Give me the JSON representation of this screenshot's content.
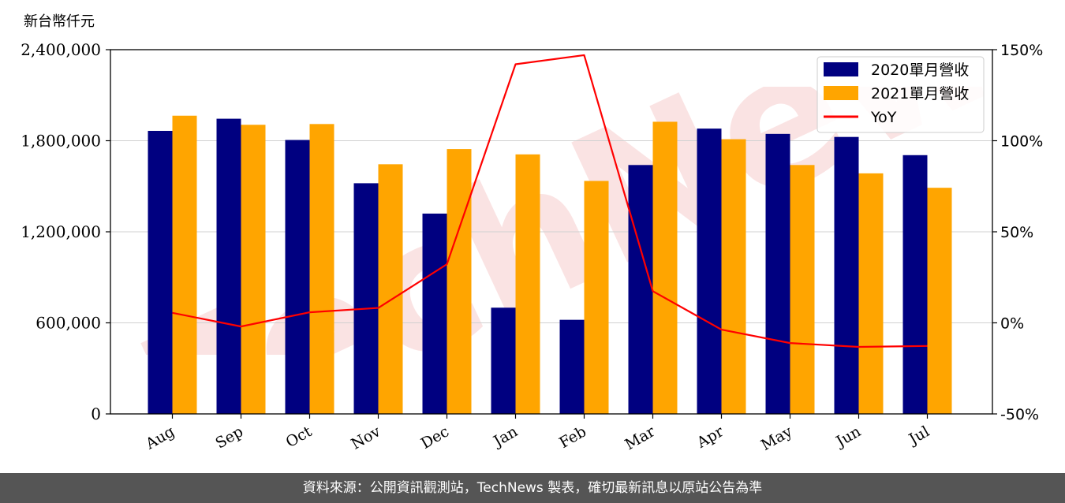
{
  "chart_data": {
    "type": "bar+line",
    "unit_label": "新台幣仟元",
    "categories": [
      "Aug",
      "Sep",
      "Oct",
      "Nov",
      "Dec",
      "Jan",
      "Feb",
      "Mar",
      "Apr",
      "May",
      "Jun",
      "Jul"
    ],
    "series": [
      {
        "name": "2020單月營收",
        "type": "bar",
        "axis": "left",
        "color": "#000080",
        "values": [
          1865000,
          1945000,
          1805000,
          1520000,
          1320000,
          700000,
          620000,
          1640000,
          1880000,
          1845000,
          1825000,
          1705000
        ]
      },
      {
        "name": "2021單月營收",
        "type": "bar",
        "axis": "left",
        "color": "#FFA500",
        "values": [
          1965000,
          1905000,
          1910000,
          1645000,
          1745000,
          1710000,
          1535000,
          1925000,
          1810000,
          1640000,
          1585000,
          1490000
        ]
      },
      {
        "name": "YoY",
        "type": "line",
        "axis": "right",
        "color": "#FF0000",
        "values": [
          5.5,
          -2,
          5.8,
          8.2,
          32.2,
          142,
          147,
          17.4,
          -3.7,
          -11.1,
          -13.2,
          -12.7
        ]
      }
    ],
    "left_axis": {
      "ylim": [
        0,
        2400000
      ],
      "ticks": [
        "0",
        "600,000",
        "1,200,000",
        "1,800,000",
        "2,400,000"
      ]
    },
    "right_axis": {
      "ylim": [
        -50,
        150
      ],
      "ticks": [
        "-50%",
        "0%",
        "50%",
        "100%",
        "150%"
      ]
    },
    "legend_position": "top-right",
    "grid": "horizontal"
  },
  "watermark_text": "TechNews",
  "footer": {
    "text": "資料來源：公開資訊觀測站，TechNews 製表，確切最新訊息以原站公告為準"
  }
}
